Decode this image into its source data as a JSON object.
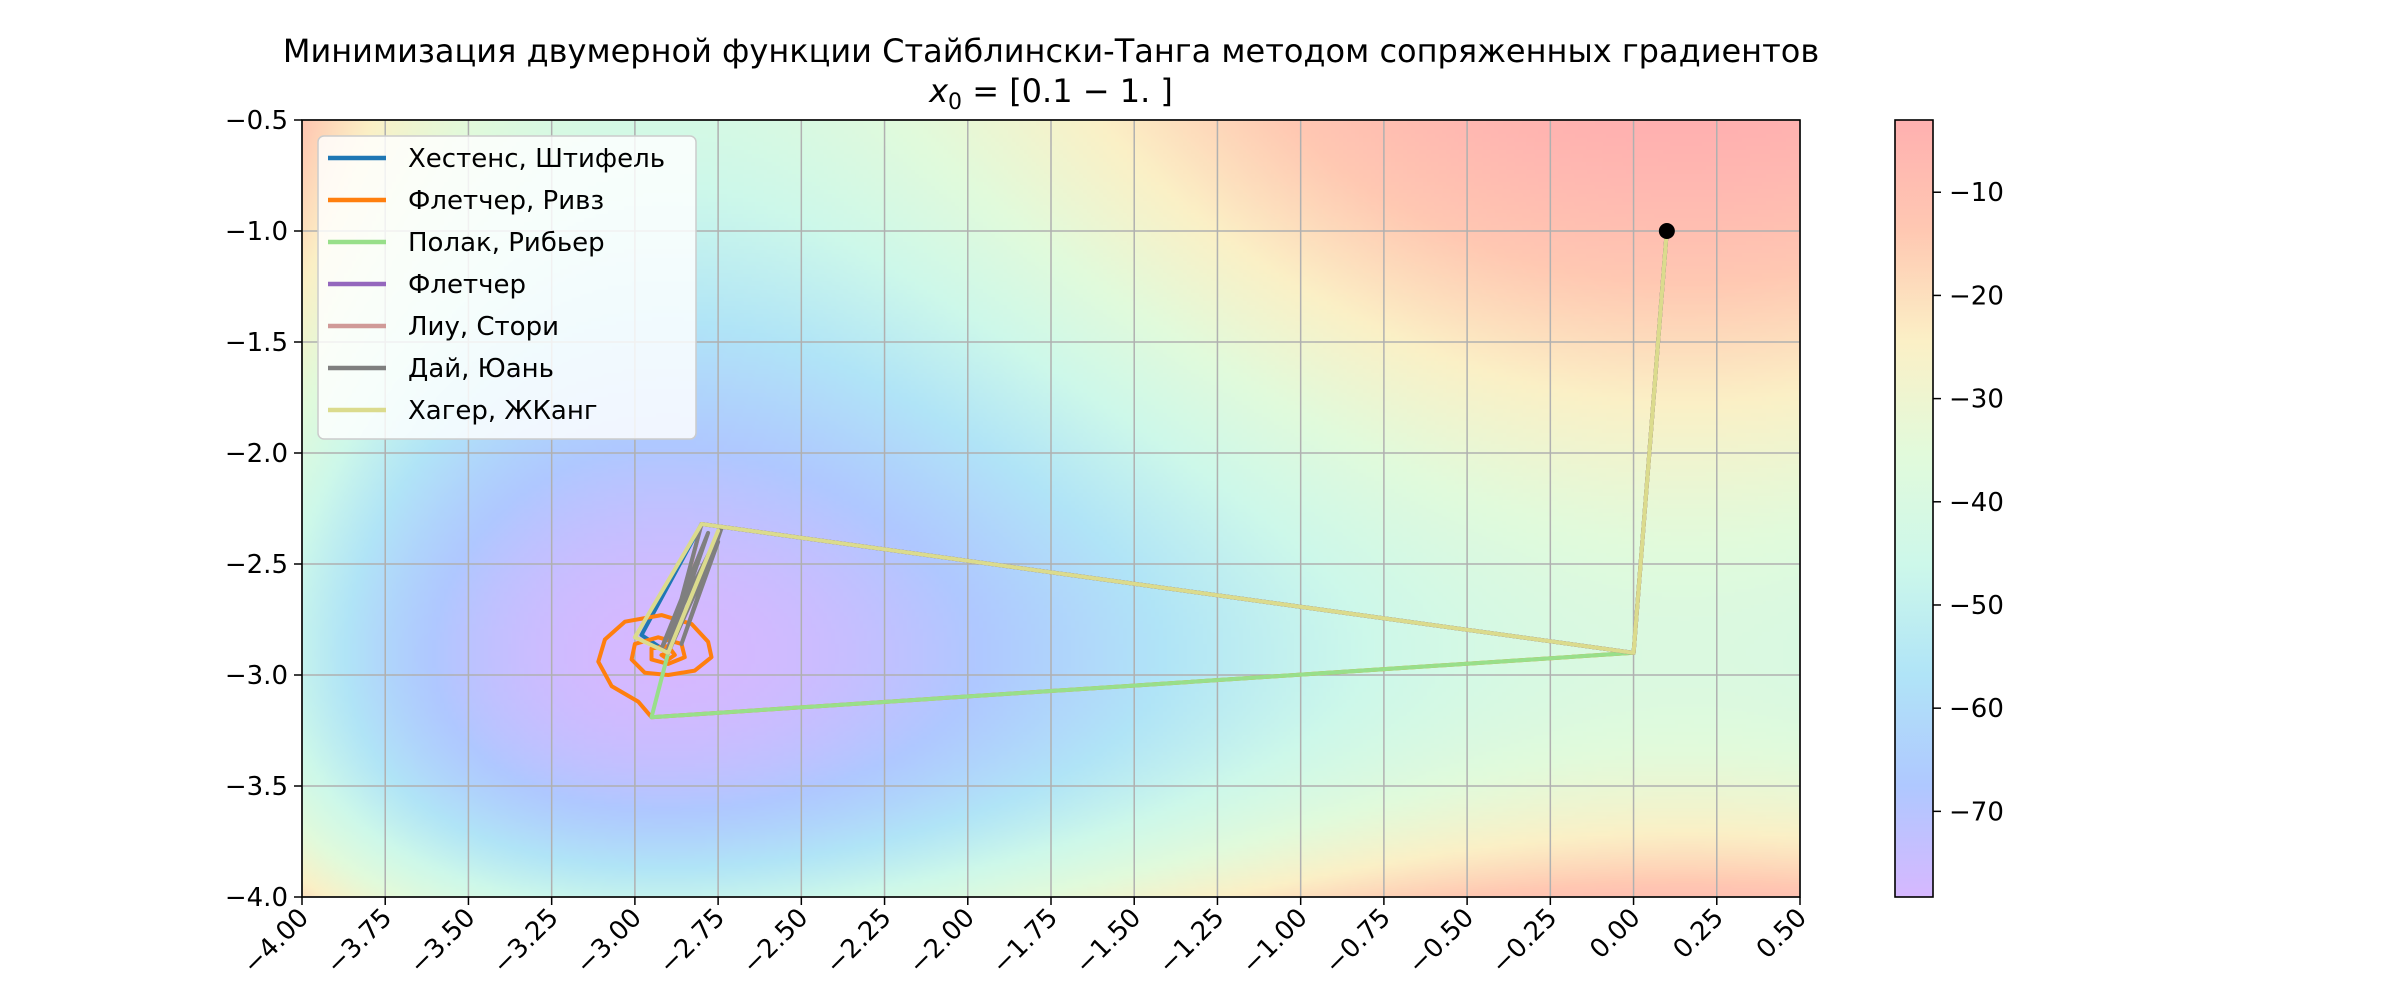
{
  "chart_data": {
    "type": "line",
    "title": "Минимизация двумерной функции Стайблински-Танга методом сопряженных градиентов",
    "subtitle": {
      "math_var": "x",
      "math_sub": "0",
      "rest": " = [0.1 − 1. ]"
    },
    "xlim": [
      -4.0,
      0.5
    ],
    "ylim": [
      -4.0,
      -0.5
    ],
    "xticks": [
      "−4.00",
      "−3.75",
      "−3.50",
      "−3.25",
      "−3.00",
      "−2.75",
      "−2.50",
      "−2.25",
      "−2.00",
      "−1.75",
      "−1.50",
      "−1.25",
      "−1.00",
      "−0.75",
      "−0.50",
      "−0.25",
      "0.00",
      "0.25",
      "0.50"
    ],
    "yticks": [
      "−0.5",
      "−1.0",
      "−1.5",
      "−2.0",
      "−2.5",
      "−3.0",
      "−3.5",
      "−4.0"
    ],
    "grid": true,
    "legend_position": "top-left",
    "background": "Stybliński–Tang function value heatmap",
    "colorbar": {
      "min": -78.3,
      "max": -3.0,
      "ticks": [
        "−10",
        "−20",
        "−30",
        "−40",
        "−50",
        "−60",
        "−70"
      ],
      "tick_values": [
        -10,
        -20,
        -30,
        -40,
        -50,
        -60,
        -70
      ],
      "colors": [
        "#d6b8ff",
        "#afc8ff",
        "#b0e4f7",
        "#cdf8ea",
        "#e2fadb",
        "#fbf0c6",
        "#ffc8b2",
        "#ffb0b0"
      ]
    },
    "start_point": {
      "x": 0.1,
      "y": -1.0
    },
    "series": [
      {
        "name": "Хестенс, Штифель",
        "color": "#1f77b4",
        "points": [
          [
            0.1,
            -1.0
          ],
          [
            0.0,
            -2.9
          ],
          [
            -2.8,
            -2.32
          ],
          [
            -2.98,
            -2.82
          ],
          [
            -2.9,
            -2.9
          ]
        ]
      },
      {
        "name": "Флетчер, Ривз",
        "color": "#ff7f0e",
        "points": [
          [
            0.1,
            -1.0
          ],
          [
            0.0,
            -2.9
          ],
          [
            -2.95,
            -3.19
          ],
          [
            -2.99,
            -3.12
          ],
          [
            -3.07,
            -3.05
          ],
          [
            -3.11,
            -2.94
          ],
          [
            -3.09,
            -2.84
          ],
          [
            -3.03,
            -2.76
          ],
          [
            -2.92,
            -2.73
          ],
          [
            -2.83,
            -2.77
          ],
          [
            -2.78,
            -2.85
          ],
          [
            -2.77,
            -2.92
          ],
          [
            -2.82,
            -2.98
          ],
          [
            -2.9,
            -3.0
          ],
          [
            -2.97,
            -2.99
          ],
          [
            -3.01,
            -2.93
          ],
          [
            -3.0,
            -2.86
          ],
          [
            -2.93,
            -2.83
          ],
          [
            -2.86,
            -2.86
          ],
          [
            -2.85,
            -2.92
          ],
          [
            -2.9,
            -2.95
          ],
          [
            -2.95,
            -2.93
          ],
          [
            -2.95,
            -2.88
          ],
          [
            -2.9,
            -2.87
          ],
          [
            -2.88,
            -2.91
          ],
          [
            -2.9,
            -2.93
          ],
          [
            -2.92,
            -2.91
          ],
          [
            -2.9,
            -2.9
          ]
        ]
      },
      {
        "name": "Полак, Рибьер",
        "color": "#98df8a",
        "points": [
          [
            0.1,
            -1.0
          ],
          [
            0.0,
            -2.9
          ],
          [
            -2.95,
            -3.19
          ],
          [
            -2.9,
            -2.9
          ]
        ]
      },
      {
        "name": "Флетчер",
        "color": "#9467bd",
        "points": [
          [
            0.1,
            -1.0
          ],
          [
            0.0,
            -2.9
          ],
          [
            -2.8,
            -2.32
          ],
          [
            -2.9,
            -2.9
          ]
        ]
      },
      {
        "name": "Лиу, Стори",
        "color": "#d09a98",
        "points": [
          [
            0.1,
            -1.0
          ],
          [
            0.0,
            -2.9
          ],
          [
            -2.8,
            -2.32
          ],
          [
            -2.9,
            -2.9
          ]
        ]
      },
      {
        "name": "Дай, Юань",
        "color": "#7f7f7f",
        "points": [
          [
            0.1,
            -1.0
          ],
          [
            0.0,
            -2.9
          ],
          [
            -2.8,
            -2.32
          ],
          [
            -2.9,
            -2.88
          ],
          [
            -2.78,
            -2.36
          ],
          [
            -2.92,
            -2.88
          ],
          [
            -2.74,
            -2.34
          ],
          [
            -2.86,
            -2.86
          ],
          [
            -2.75,
            -2.4
          ],
          [
            -2.9,
            -2.9
          ]
        ]
      },
      {
        "name": "Хагер, ЖКанг",
        "color": "#dbdb8d",
        "points": [
          [
            0.1,
            -1.0
          ],
          [
            0.0,
            -2.9
          ],
          [
            -2.8,
            -2.32
          ],
          [
            -3.0,
            -2.83
          ],
          [
            -2.9,
            -2.9
          ],
          [
            -2.75,
            -2.35
          ],
          [
            -2.9,
            -2.9
          ]
        ]
      }
    ]
  }
}
